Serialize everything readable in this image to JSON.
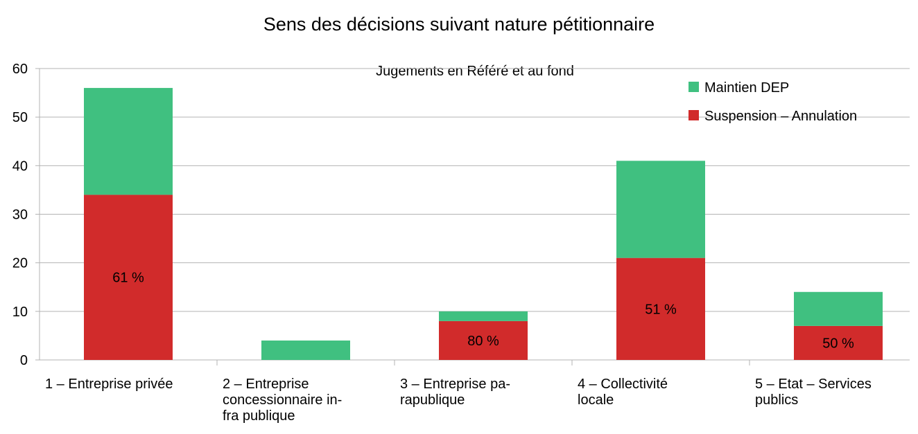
{
  "chart_data": {
    "type": "stacked_bar",
    "title": "Sens des décisions suivant nature pétitionnaire",
    "subtitle": "Jugements en Référé et au fond",
    "categories": [
      "1 – Entreprise privée",
      "2 – Entreprise\nconcessionnaire in-\nfra publique",
      "3 – Entreprise pa-\nrapublique",
      "4 – Collectivité\nlocale",
      "5 – Etat – Services\npublics"
    ],
    "series": [
      {
        "name": "Suspension – Annulation",
        "color": "#d12b2b",
        "values": [
          34,
          0,
          8,
          21,
          7
        ],
        "value_labels": [
          "61 %",
          null,
          "80 %",
          "51 %",
          "50 %"
        ]
      },
      {
        "name": "Maintien DEP",
        "color": "#40c080",
        "values": [
          22,
          4,
          2,
          20,
          7
        ]
      }
    ],
    "ylim": [
      0,
      60
    ],
    "yticks": [
      0,
      10,
      20,
      30,
      40,
      50,
      60
    ],
    "grid": true,
    "legend": "top-right"
  }
}
